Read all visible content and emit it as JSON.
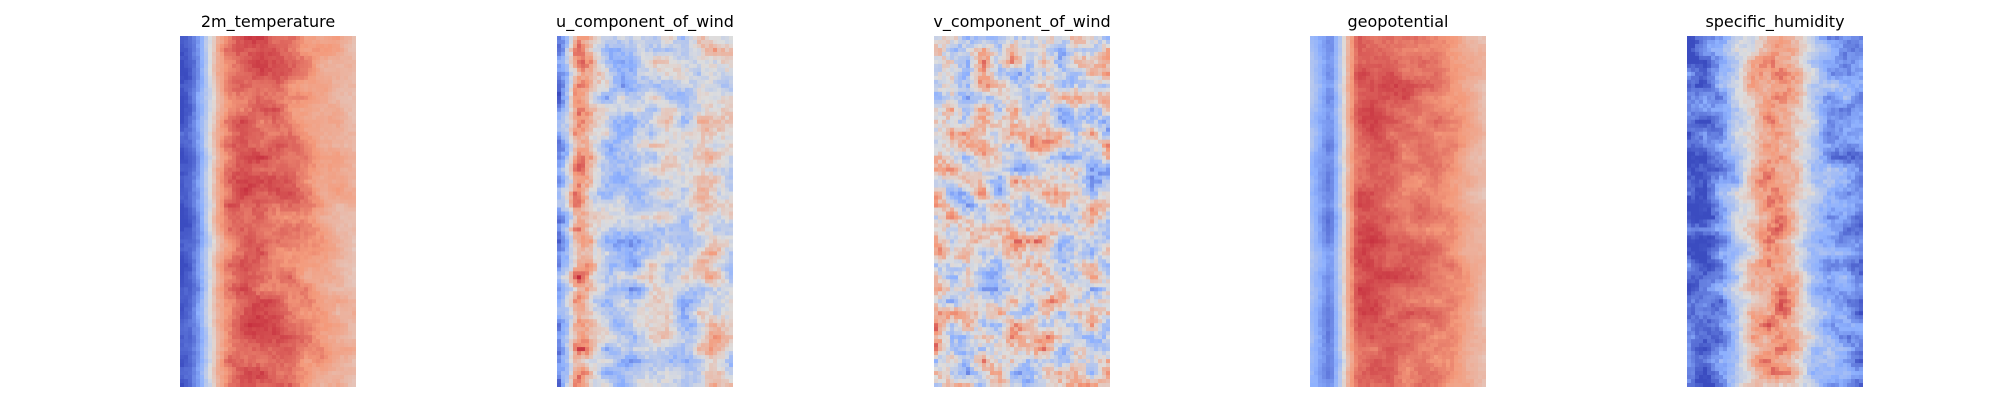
{
  "chart_data": [
    {
      "type": "heatmap",
      "title": "2m_temperature",
      "colormap": "coolwarm",
      "axes_visible": false,
      "grid": false,
      "profile_description_note": "",
      "dominant_pattern": "warm band",
      "column_profile": [
        -0.95,
        -0.85,
        -0.55,
        -0.1,
        0.35,
        0.6,
        0.68,
        0.7,
        0.7,
        0.68,
        0.66,
        0.64,
        0.6,
        0.55,
        0.5,
        0.45,
        0.4,
        0.35,
        0.3,
        0.25
      ],
      "row_profile": [
        0.05,
        0.02,
        0.0,
        -0.02,
        0.0,
        0.03,
        0.05,
        0.04,
        0.0,
        -0.03,
        -0.04,
        -0.02,
        0.02,
        0.04,
        0.03,
        0.0
      ],
      "noise": 0.12,
      "seed": 11
    },
    {
      "type": "heatmap",
      "title": "u_component_of_wind",
      "colormap": "coolwarm",
      "axes_visible": false,
      "grid": false,
      "dominant_pattern": "streaky",
      "column_profile": [
        -0.6,
        -0.2,
        0.55,
        0.45,
        0.1,
        -0.15,
        -0.3,
        -0.25,
        -0.35,
        -0.2,
        -0.1,
        -0.05,
        0.0,
        -0.1,
        -0.2,
        -0.1,
        0.1,
        0.2,
        0.05,
        -0.1
      ],
      "row_profile": [
        0.0,
        0.05,
        -0.05,
        0.0,
        0.05,
        -0.05,
        0.0,
        0.05,
        -0.05,
        0.0,
        0.05,
        -0.05,
        0.0,
        0.05,
        -0.05,
        0.0
      ],
      "noise": 0.35,
      "seed": 23
    },
    {
      "type": "heatmap",
      "title": "v_component_of_wind",
      "colormap": "coolwarm",
      "axes_visible": false,
      "grid": false,
      "dominant_pattern": "noisy",
      "column_profile": [
        0.1,
        0.05,
        -0.05,
        -0.1,
        0.0,
        0.05,
        0.0,
        -0.05,
        0.05,
        0.0,
        -0.05,
        0.05,
        0.0,
        0.05,
        -0.05,
        0.0,
        0.05,
        0.0,
        -0.05,
        0.0
      ],
      "row_profile": [
        0.05,
        0.0,
        -0.05,
        0.0,
        0.05,
        0.0,
        -0.05,
        0.0,
        0.05,
        0.0,
        -0.05,
        0.0,
        0.05,
        0.0,
        -0.05,
        0.0
      ],
      "noise": 0.55,
      "seed": 37
    },
    {
      "type": "heatmap",
      "title": "geopotential",
      "colormap": "coolwarm",
      "axes_visible": false,
      "grid": false,
      "dominant_pattern": "warm band",
      "column_profile": [
        -0.35,
        -0.55,
        -0.75,
        -0.3,
        0.35,
        0.7,
        0.72,
        0.72,
        0.7,
        0.68,
        0.66,
        0.64,
        0.62,
        0.6,
        0.58,
        0.55,
        0.5,
        0.4,
        0.32,
        0.25
      ],
      "row_profile": [
        0.0,
        0.03,
        0.05,
        0.03,
        0.0,
        -0.03,
        -0.05,
        -0.03,
        0.0,
        0.03,
        0.05,
        0.03,
        0.0,
        -0.03,
        -0.05,
        -0.03
      ],
      "noise": 0.1,
      "seed": 49
    },
    {
      "type": "heatmap",
      "title": "specific_humidity",
      "colormap": "coolwarm",
      "axes_visible": false,
      "grid": false,
      "dominant_pattern": "central moist band",
      "column_profile": [
        -0.9,
        -0.9,
        -0.85,
        -0.75,
        -0.6,
        -0.35,
        -0.1,
        0.15,
        0.35,
        0.45,
        0.45,
        0.35,
        0.15,
        -0.1,
        -0.3,
        -0.45,
        -0.55,
        -0.6,
        -0.7,
        -0.75
      ],
      "row_profile": [
        0.0,
        0.05,
        0.1,
        0.05,
        0.0,
        -0.05,
        0.0,
        0.05,
        0.0,
        -0.05,
        0.0,
        0.05,
        0.1,
        0.05,
        0.0,
        -0.05
      ],
      "noise": 0.28,
      "seed": 61
    }
  ]
}
